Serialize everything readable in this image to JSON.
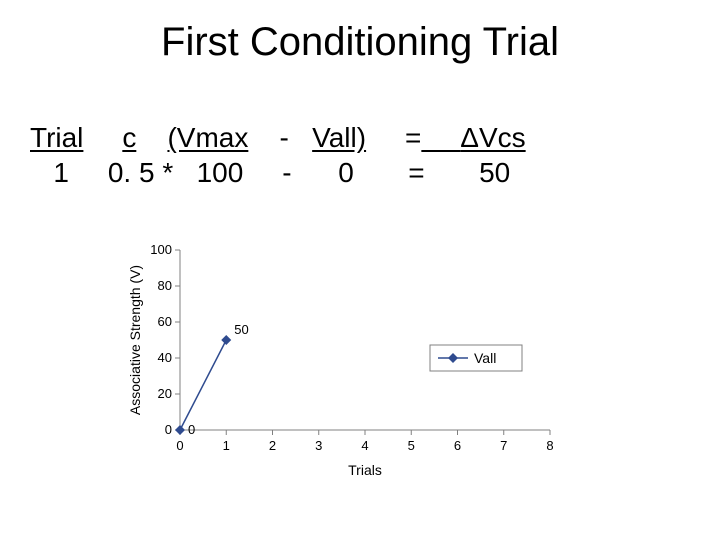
{
  "title": "First Conditioning Trial",
  "equation": {
    "header": {
      "trial": "Trial",
      "c": "c",
      "vmax": "(Vmax",
      "minus": "-",
      "vall": "Vall)",
      "eq": "=",
      "dvcs": "ΔVcs"
    },
    "row1": {
      "trial": "1",
      "c": "0. 5",
      "op": "*",
      "vmax": "100",
      "minus": "-",
      "vall": "0",
      "eq": "=",
      "dvcs": "50"
    }
  },
  "chart": {
    "type": "line",
    "x_values": [
      0,
      1
    ],
    "y_values": [
      0,
      50
    ],
    "point_labels": [
      "0",
      "50"
    ],
    "line_color": "#2f4b8f",
    "marker_color": "#2f4b8f",
    "marker_style": "diamond",
    "marker_size": 6,
    "line_width": 1.5,
    "xlabel": "Trials",
    "ylabel": "Associative Strength (V)",
    "label_fontsize": 14,
    "tick_fontsize": 13,
    "xlim": [
      0,
      8
    ],
    "ylim": [
      0,
      100
    ],
    "xticks": [
      0,
      1,
      2,
      3,
      4,
      5,
      6,
      7,
      8
    ],
    "yticks": [
      0,
      20,
      40,
      60,
      80,
      100
    ],
    "axis_color": "#808080",
    "tick_color": "#808080",
    "background_color": "#ffffff",
    "legend": {
      "label": "Vall",
      "position": "right",
      "border_color": "#808080",
      "marker_color": "#2f4b8f"
    }
  }
}
